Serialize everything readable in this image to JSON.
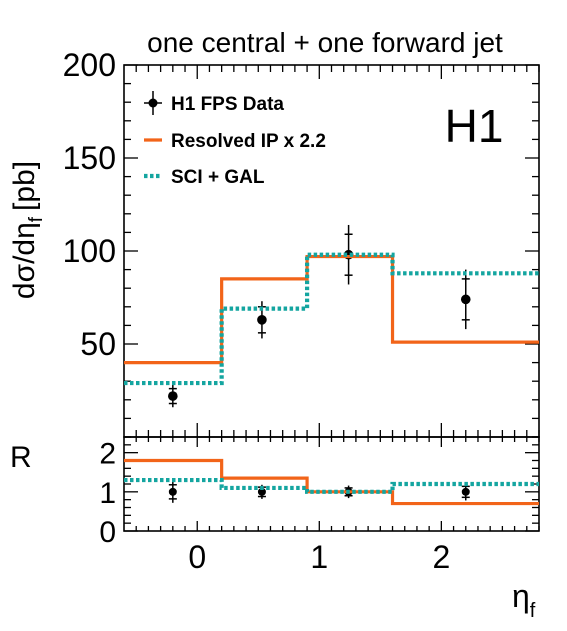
{
  "chart_data": [
    {
      "type": "line",
      "panel": "main",
      "title": "one central + one forward jet",
      "ylabel": "dσ/dη_f [pb]",
      "ylabel_main": "dσ/dη",
      "ylabel_sub": "f",
      "ylabel_unit": "[pb]",
      "xlim": [
        -0.6,
        2.8
      ],
      "ylim": [
        0,
        200
      ],
      "yticks": [
        50,
        100,
        150,
        200
      ],
      "experiment_label": "H1",
      "legend_position": "top-left",
      "bin_edges": [
        -0.6,
        0.2,
        0.9,
        1.6,
        2.8
      ],
      "series": [
        {
          "name": "H1 FPS Data",
          "style": "points",
          "color": "#000000",
          "x": [
            -0.2,
            0.53,
            1.24,
            2.2
          ],
          "y": [
            22,
            63,
            98,
            74
          ],
          "err_stat": [
            4,
            7,
            11,
            11
          ],
          "err_tot": [
            6,
            10,
            16,
            16
          ]
        },
        {
          "name": "Resolved IP x 2.2",
          "style": "step-solid",
          "color": "#f26419",
          "values": [
            40,
            85,
            97,
            51
          ]
        },
        {
          "name": "SCI + GAL",
          "style": "step-dotted",
          "color": "#14a5a0",
          "values": [
            29,
            69,
            98,
            88
          ]
        }
      ]
    },
    {
      "type": "line",
      "panel": "ratio",
      "ylabel": "R",
      "xlabel": "η_f",
      "xlabel_main": "η",
      "xlabel_sub": "f",
      "xlim": [
        -0.6,
        2.8
      ],
      "ylim": [
        0,
        2.4
      ],
      "yticks": [
        0,
        1,
        2
      ],
      "xticks": [
        0,
        1,
        2
      ],
      "bin_edges": [
        -0.6,
        0.2,
        0.9,
        1.6,
        2.8
      ],
      "series": [
        {
          "style": "points",
          "color": "#000000",
          "x": [
            -0.2,
            0.53,
            1.24,
            2.2
          ],
          "y": [
            1.0,
            1.0,
            1.0,
            1.0
          ],
          "err_stat": [
            0.18,
            0.12,
            0.1,
            0.14
          ],
          "err_tot": [
            0.28,
            0.18,
            0.16,
            0.22
          ]
        },
        {
          "style": "step-solid",
          "color": "#f26419",
          "values": [
            1.8,
            1.35,
            1.0,
            0.7
          ]
        },
        {
          "style": "step-dotted",
          "color": "#14a5a0",
          "values": [
            1.3,
            1.1,
            1.0,
            1.2
          ]
        }
      ]
    }
  ]
}
